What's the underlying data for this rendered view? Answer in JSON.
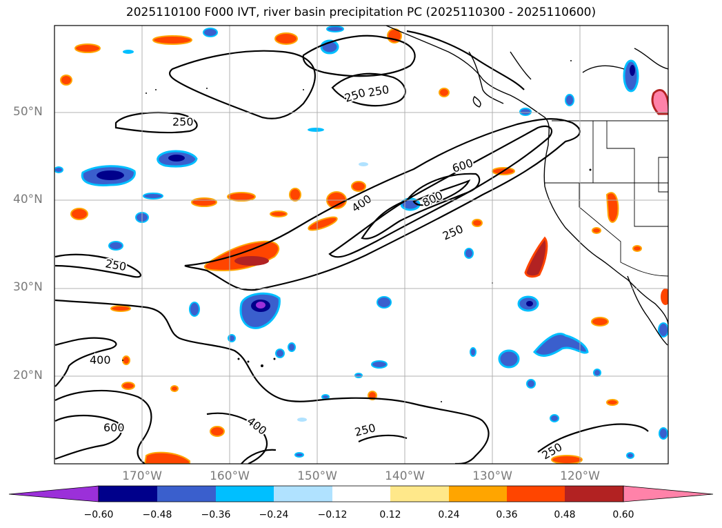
{
  "title": "2025110100 F000 IVT, river basin precipitation PC (2025110300 - 2025110600)",
  "colors": {
    "background": "#ffffff",
    "grid": "#b0b0b0",
    "axis_label": "#7a7a7a",
    "coast": "#000000"
  },
  "map": {
    "lon_range": [
      -180,
      -110
    ],
    "lat_range": [
      10,
      60
    ],
    "lat_labels": [
      "50°N",
      "40°N",
      "30°N",
      "20°N"
    ],
    "lon_labels": [
      "170°W",
      "160°W",
      "150°W",
      "140°W",
      "130°W",
      "120°W"
    ]
  },
  "ivt_contour_labels": [
    "250",
    "250",
    "250",
    "250",
    "250",
    "250",
    "250",
    "400",
    "400",
    "400",
    "600",
    "600",
    "800"
  ],
  "colorbar": {
    "ticks": [
      "−0.60",
      "−0.48",
      "−0.36",
      "−0.24",
      "−0.12",
      "0.12",
      "0.24",
      "0.36",
      "0.48",
      "0.60"
    ],
    "bins": [
      "#9b30d9",
      "#00008b",
      "#3a5fcd",
      "#00bfff",
      "#b0e2ff",
      "#ffffff",
      "#ffe88a",
      "#ffa500",
      "#ff4500",
      "#b22222",
      "#ff82a9"
    ]
  }
}
